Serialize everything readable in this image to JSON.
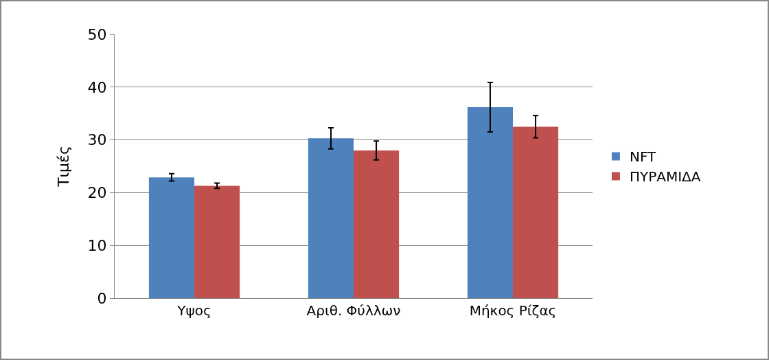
{
  "chart_data": {
    "type": "bar",
    "ylabel": "Τιμές",
    "categories": [
      "Υψος",
      "Αριθ. Φύλλων",
      "Μήκος Ρίζας"
    ],
    "series": [
      {
        "name": "NFT",
        "color": "#4f81bd",
        "values": [
          22.9,
          30.3,
          36.2
        ],
        "errors": [
          0.7,
          2.0,
          4.7
        ]
      },
      {
        "name": "ΠΥΡΑΜΙΔΑ",
        "color": "#c0504d",
        "values": [
          21.3,
          28.0,
          32.5
        ],
        "errors": [
          0.5,
          1.8,
          2.1
        ]
      }
    ],
    "ylim": [
      0,
      50
    ],
    "yticks": [
      0,
      10,
      20,
      30,
      40,
      50
    ],
    "grid": "y",
    "legend": "right"
  }
}
